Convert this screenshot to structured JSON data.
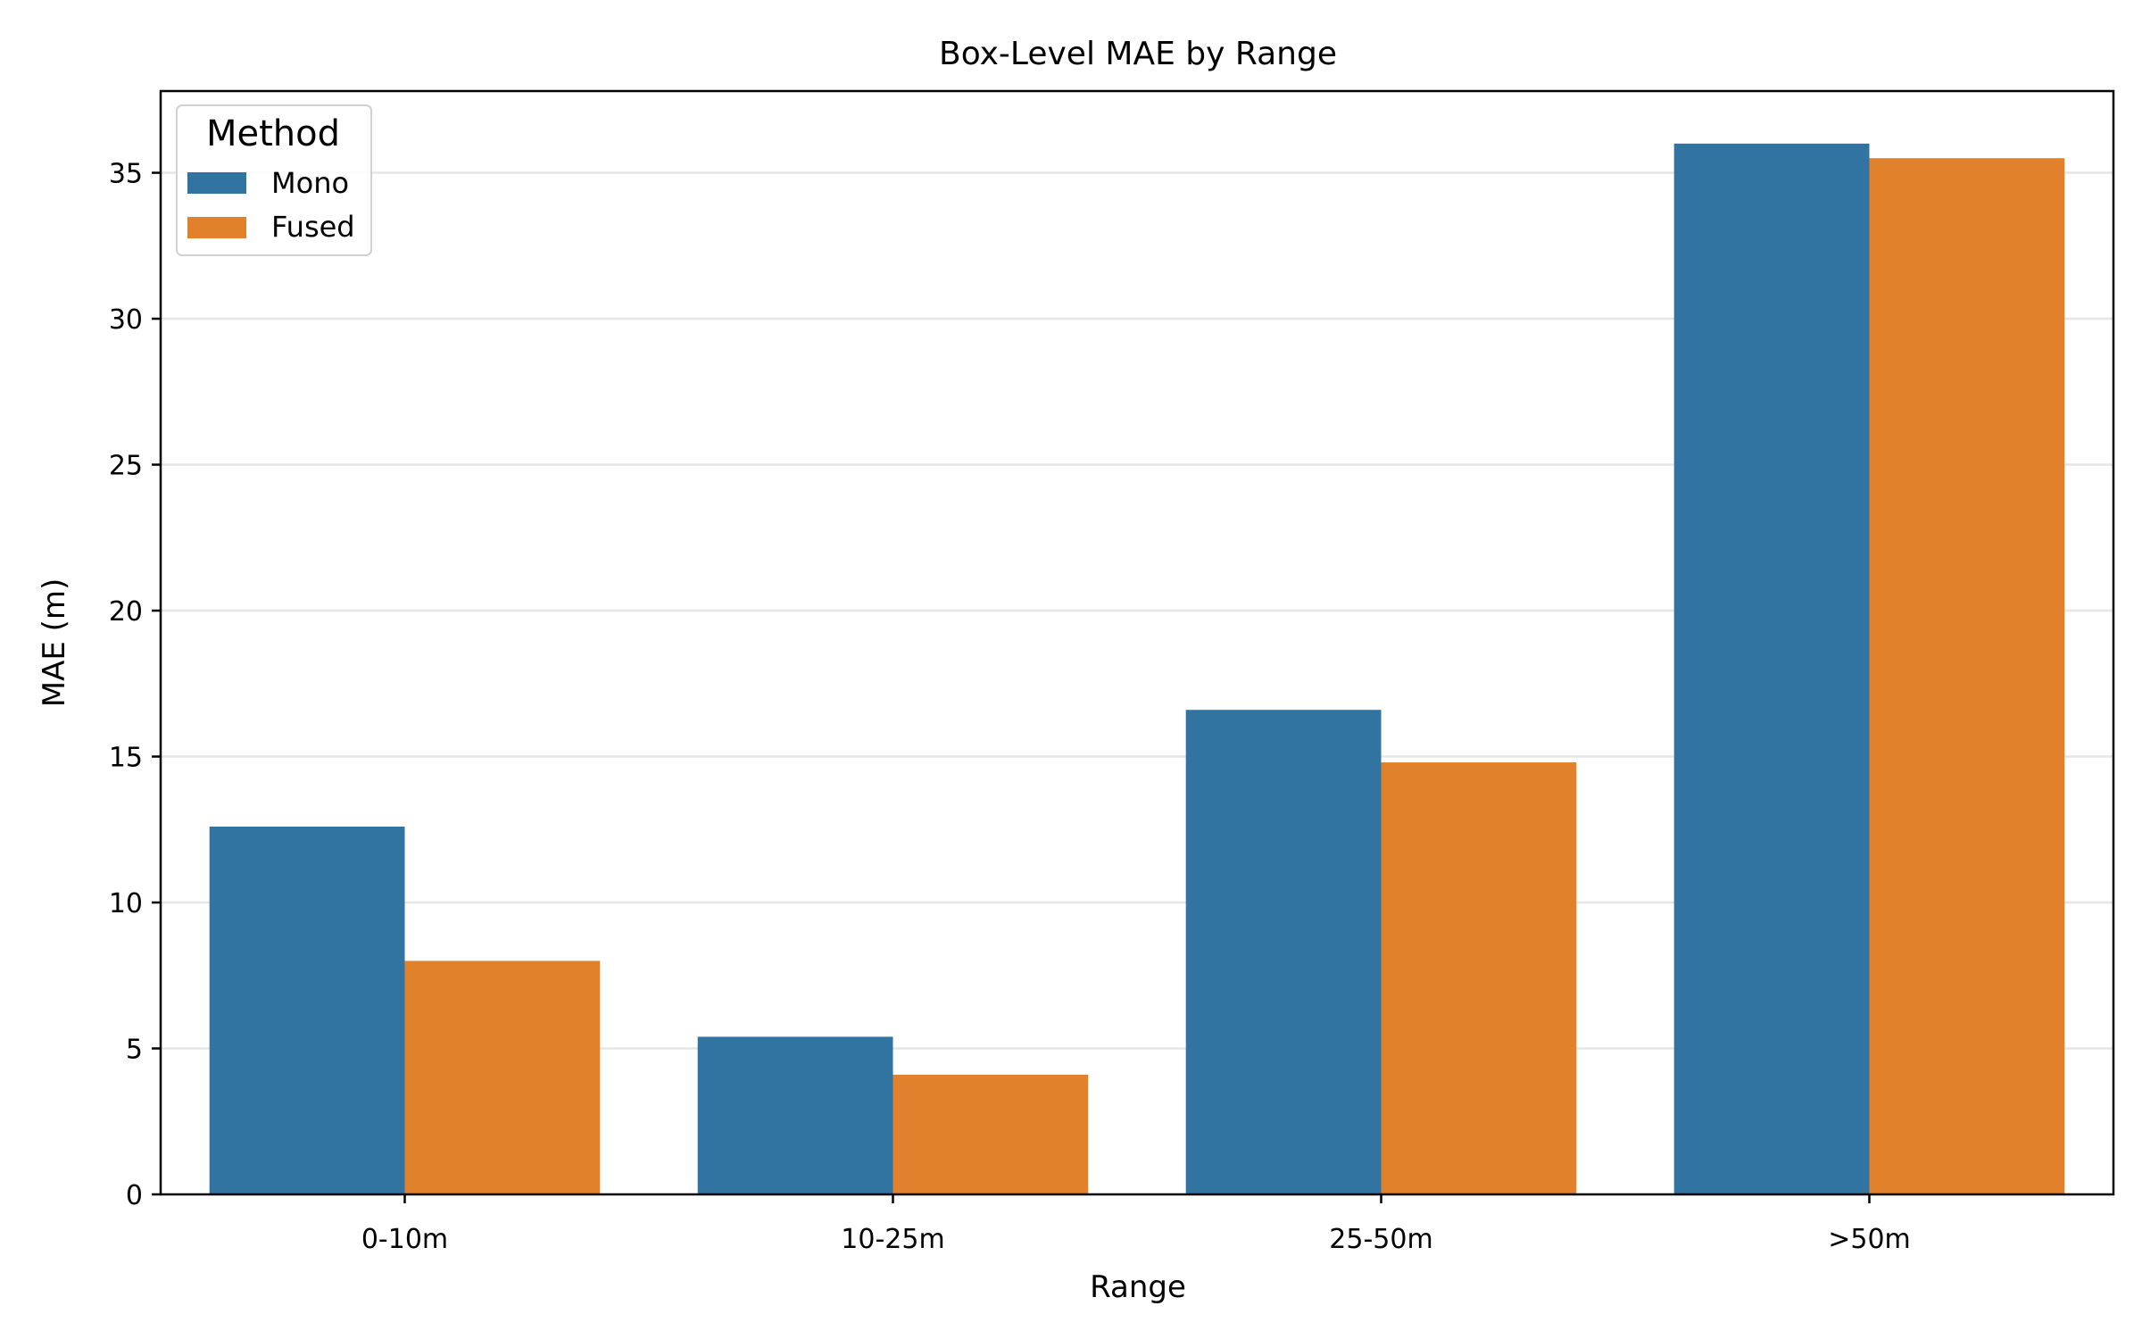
{
  "chart_data": {
    "type": "bar",
    "title": "Box-Level MAE by Range",
    "xlabel": "Range",
    "ylabel": "MAE (m)",
    "categories": [
      "0-10m",
      "10-25m",
      "25-50m",
      ">50m"
    ],
    "series": [
      {
        "name": "Mono",
        "color": "#3274a1",
        "values": [
          12.6,
          5.4,
          16.6,
          36.0
        ]
      },
      {
        "name": "Fused",
        "color": "#e1812c",
        "values": [
          8.0,
          4.1,
          14.8,
          35.5
        ]
      }
    ],
    "ylim": [
      0,
      37.8
    ],
    "yticks": [
      0,
      5,
      10,
      15,
      20,
      25,
      30,
      35
    ],
    "grid": "horizontal",
    "legend": {
      "title": "Method",
      "placement": "top-left"
    }
  }
}
